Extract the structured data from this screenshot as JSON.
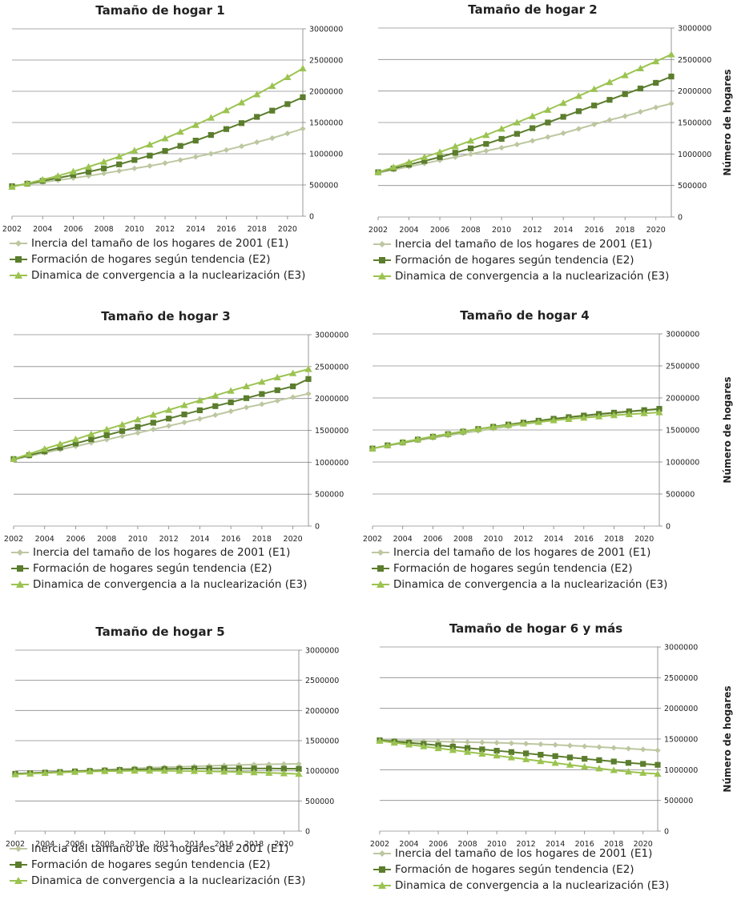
{
  "y_axis_label": "Número de hogares",
  "colors": {
    "e1": "#bcc7a0",
    "e2": "#5b7d2d",
    "e3": "#9bc350",
    "grid": "#8c8c8c",
    "axis": "#7f7f7f"
  },
  "chart_data": [
    {
      "type": "line",
      "title": "Tamaño de hogar 1",
      "xlabel": "",
      "ylabel": "",
      "ylim": [
        0,
        3000000
      ],
      "yticks": [
        "0",
        "500000",
        "1000000",
        "1500000",
        "2000000",
        "2500000",
        "3000000"
      ],
      "xticks": [
        "2002",
        "2004",
        "2006",
        "2008",
        "2010",
        "2012",
        "2014",
        "2016",
        "2018",
        "2020"
      ],
      "x": [
        2002,
        2003,
        2004,
        2005,
        2006,
        2007,
        2008,
        2009,
        2010,
        2011,
        2012,
        2013,
        2014,
        2015,
        2016,
        2017,
        2018,
        2019,
        2020,
        2021
      ],
      "series": [
        {
          "name": "Inercia del tamaño de los hogares de 2001 (E1)",
          "values": [
            480000,
            510000,
            545000,
            575000,
            610000,
            645000,
            685000,
            725000,
            765000,
            805000,
            850000,
            900000,
            950000,
            1000000,
            1060000,
            1120000,
            1185000,
            1250000,
            1325000,
            1400000
          ]
        },
        {
          "name": "Formación de hogares según tendencia (E2)",
          "values": [
            480000,
            520000,
            565000,
            610000,
            660000,
            710000,
            765000,
            830000,
            900000,
            970000,
            1045000,
            1125000,
            1210000,
            1300000,
            1395000,
            1490000,
            1590000,
            1690000,
            1795000,
            1905000
          ]
        },
        {
          "name": "Dinamica de convergencia a la nuclearización (E3)",
          "values": [
            470000,
            525000,
            585000,
            645000,
            715000,
            790000,
            870000,
            955000,
            1050000,
            1145000,
            1245000,
            1350000,
            1460000,
            1575000,
            1695000,
            1820000,
            1950000,
            2085000,
            2225000,
            2365000
          ]
        }
      ]
    },
    {
      "type": "line",
      "title": "Tamaño de hogar 2",
      "xlabel": "",
      "ylabel": "Número de hogares",
      "ylim": [
        0,
        3000000
      ],
      "yticks": [
        "0",
        "500000",
        "1000000",
        "1500000",
        "2000000",
        "2500000",
        "3000000"
      ],
      "xticks": [
        "2002",
        "2004",
        "2006",
        "2008",
        "2010",
        "2012",
        "2014",
        "2016",
        "2018",
        "2020"
      ],
      "x": [
        2002,
        2003,
        2004,
        2005,
        2006,
        2007,
        2008,
        2009,
        2010,
        2011,
        2012,
        2013,
        2014,
        2015,
        2016,
        2017,
        2018,
        2019,
        2020,
        2021
      ],
      "series": [
        {
          "name": "Inercia del tamaño de los hogares de 2001 (E1)",
          "values": [
            700000,
            750000,
            800000,
            850000,
            900000,
            950000,
            1000000,
            1050000,
            1100000,
            1150000,
            1210000,
            1270000,
            1330000,
            1400000,
            1470000,
            1540000,
            1600000,
            1670000,
            1740000,
            1800000
          ]
        },
        {
          "name": "Formación de hogares según tendencia (E2)",
          "values": [
            710000,
            770000,
            830000,
            890000,
            950000,
            1020000,
            1090000,
            1160000,
            1240000,
            1320000,
            1410000,
            1500000,
            1590000,
            1680000,
            1770000,
            1860000,
            1950000,
            2040000,
            2130000,
            2230000
          ]
        },
        {
          "name": "Dinamica de convergencia a la nuclearización (E3)",
          "values": [
            710000,
            790000,
            870000,
            950000,
            1030000,
            1120000,
            1210000,
            1300000,
            1400000,
            1500000,
            1600000,
            1700000,
            1810000,
            1920000,
            2030000,
            2140000,
            2250000,
            2360000,
            2470000,
            2580000
          ]
        }
      ]
    },
    {
      "type": "line",
      "title": "Tamaño de hogar 3",
      "xlabel": "",
      "ylabel": "",
      "ylim": [
        0,
        3000000
      ],
      "yticks": [
        "0",
        "500000",
        "1000000",
        "1500000",
        "2000000",
        "2500000",
        "3000000"
      ],
      "xticks": [
        "2002",
        "2004",
        "2006",
        "2008",
        "2010",
        "2012",
        "2014",
        "2016",
        "2018",
        "2020"
      ],
      "x": [
        2002,
        2003,
        2004,
        2005,
        2006,
        2007,
        2008,
        2009,
        2010,
        2011,
        2012,
        2013,
        2014,
        2015,
        2016,
        2017,
        2018,
        2019,
        2020,
        2021
      ],
      "series": [
        {
          "name": "Inercia del tamaño de los hogares de 2001 (E1)",
          "values": [
            1040000,
            1095000,
            1150000,
            1200000,
            1250000,
            1305000,
            1355000,
            1410000,
            1460000,
            1515000,
            1570000,
            1625000,
            1680000,
            1740000,
            1800000,
            1860000,
            1910000,
            1965000,
            2020000,
            2075000
          ]
        },
        {
          "name": "Formación de hogares según tendencia (E2)",
          "values": [
            1050000,
            1110000,
            1170000,
            1230000,
            1295000,
            1360000,
            1425000,
            1490000,
            1555000,
            1620000,
            1685000,
            1750000,
            1815000,
            1880000,
            1940000,
            2005000,
            2070000,
            2130000,
            2190000,
            2305000
          ]
        },
        {
          "name": "Dinamica de convergencia a la nuclearización (E3)",
          "values": [
            1050000,
            1130000,
            1210000,
            1285000,
            1360000,
            1440000,
            1515000,
            1590000,
            1670000,
            1745000,
            1820000,
            1895000,
            1970000,
            2045000,
            2120000,
            2190000,
            2260000,
            2330000,
            2395000,
            2460000
          ]
        }
      ]
    },
    {
      "type": "line",
      "title": "Tamaño de hogar 4",
      "xlabel": "",
      "ylabel": "Número de hogares",
      "ylim": [
        0,
        3000000
      ],
      "yticks": [
        "0",
        "500000",
        "1000000",
        "1500000",
        "2000000",
        "2500000",
        "3000000"
      ],
      "xticks": [
        "2002",
        "2004",
        "2006",
        "2008",
        "2010",
        "2012",
        "2014",
        "2016",
        "2018",
        "2020"
      ],
      "x": [
        2002,
        2003,
        2004,
        2005,
        2006,
        2007,
        2008,
        2009,
        2010,
        2011,
        2012,
        2013,
        2014,
        2015,
        2016,
        2017,
        2018,
        2019,
        2020,
        2021
      ],
      "series": [
        {
          "name": "Inercia del tamaño de los hogares de 2001 (E1)",
          "values": [
            1210000,
            1255000,
            1295000,
            1335000,
            1375000,
            1415000,
            1450000,
            1485000,
            1520000,
            1555000,
            1590000,
            1620000,
            1650000,
            1680000,
            1710000,
            1735000,
            1760000,
            1785000,
            1805000,
            1820000
          ]
        },
        {
          "name": "Formación de hogares según tendencia (E2)",
          "values": [
            1210000,
            1260000,
            1305000,
            1350000,
            1395000,
            1435000,
            1475000,
            1515000,
            1550000,
            1585000,
            1615000,
            1645000,
            1675000,
            1700000,
            1725000,
            1750000,
            1770000,
            1790000,
            1810000,
            1830000
          ]
        },
        {
          "name": "Dinamica de convergencia a la nuclearización (E3)",
          "values": [
            1210000,
            1260000,
            1310000,
            1355000,
            1400000,
            1440000,
            1480000,
            1515000,
            1545000,
            1575000,
            1600000,
            1625000,
            1650000,
            1670000,
            1690000,
            1710000,
            1730000,
            1745000,
            1760000,
            1775000
          ]
        }
      ]
    },
    {
      "type": "line",
      "title": "Tamaño de hogar 5",
      "xlabel": "",
      "ylabel": "",
      "ylim": [
        0,
        3000000
      ],
      "yticks": [
        "0",
        "500000",
        "1000000",
        "1500000",
        "2000000",
        "2500000",
        "3000000"
      ],
      "xticks": [
        "2002",
        "2004",
        "2006",
        "2008",
        "2010",
        "2012",
        "2014",
        "2016",
        "2018",
        "2020"
      ],
      "x": [
        2002,
        2003,
        2004,
        2005,
        2006,
        2007,
        2008,
        2009,
        2010,
        2011,
        2012,
        2013,
        2014,
        2015,
        2016,
        2017,
        2018,
        2019,
        2020,
        2021
      ],
      "series": [
        {
          "name": "Inercia del tamaño de los hogares de 2001 (E1)",
          "values": [
            950000,
            962000,
            974000,
            986000,
            998000,
            1010000,
            1020000,
            1030000,
            1040000,
            1050000,
            1058000,
            1066000,
            1074000,
            1082000,
            1090000,
            1097000,
            1103000,
            1108000,
            1112000,
            1115000
          ]
        },
        {
          "name": "Formación de hogares según tendencia (E2)",
          "values": [
            950000,
            960000,
            970000,
            980000,
            990000,
            998000,
            1006000,
            1014000,
            1020000,
            1026000,
            1030000,
            1034000,
            1037000,
            1039000,
            1040000,
            1040000,
            1039000,
            1038000,
            1036000,
            1033000
          ]
        },
        {
          "name": "Dinamica de convergencia a la nuclearización (E3)",
          "values": [
            940000,
            952000,
            962000,
            972000,
            980000,
            988000,
            994000,
            998000,
            1000000,
            1001000,
            1000000,
            998000,
            995000,
            991000,
            986000,
            980000,
            973000,
            965000,
            957000,
            948000
          ]
        }
      ]
    },
    {
      "type": "line",
      "title": "Tamaño de hogar 6 y más",
      "xlabel": "",
      "ylabel": "Número de hogares",
      "ylim": [
        0,
        3000000
      ],
      "yticks": [
        "0",
        "500000",
        "1000000",
        "1500000",
        "2000000",
        "2500000",
        "3000000"
      ],
      "xticks": [
        "2002",
        "2004",
        "2006",
        "2008",
        "2010",
        "2012",
        "2014",
        "2016",
        "2018",
        "2020"
      ],
      "x": [
        2002,
        2003,
        2004,
        2005,
        2006,
        2007,
        2008,
        2009,
        2010,
        2011,
        2012,
        2013,
        2014,
        2015,
        2016,
        2017,
        2018,
        2019,
        2020,
        2021
      ],
      "series": [
        {
          "name": "Inercia del tamaño de los hogares de 2001 (E1)",
          "values": [
            1480000,
            1475000,
            1470000,
            1465000,
            1460000,
            1455000,
            1450000,
            1445000,
            1440000,
            1432000,
            1424000,
            1415000,
            1405000,
            1394000,
            1382000,
            1370000,
            1357000,
            1344000,
            1330000,
            1315000
          ]
        },
        {
          "name": "Formación de hogares según tendencia (E2)",
          "values": [
            1480000,
            1460000,
            1440000,
            1420000,
            1398000,
            1376000,
            1354000,
            1332000,
            1310000,
            1288000,
            1266000,
            1244000,
            1222000,
            1200000,
            1178000,
            1156000,
            1134000,
            1112000,
            1095000,
            1080000
          ]
        },
        {
          "name": "Dinamica de convergencia a la nuclearización (E3)",
          "values": [
            1470000,
            1440000,
            1410000,
            1380000,
            1350000,
            1320000,
            1290000,
            1260000,
            1230000,
            1200000,
            1170000,
            1140000,
            1110000,
            1080000,
            1050000,
            1020000,
            992000,
            968000,
            948000,
            932000
          ]
        }
      ]
    }
  ]
}
